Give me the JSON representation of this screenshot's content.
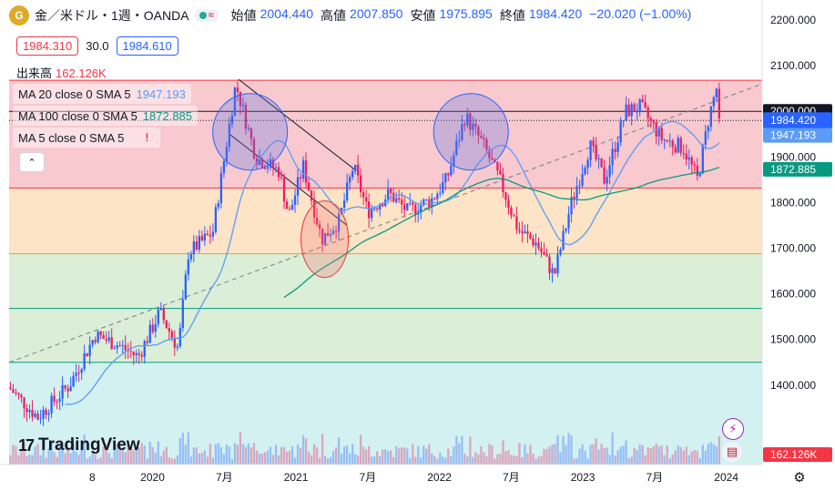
{
  "header": {
    "symbol": "金／米ドル・1週・OANDA",
    "icon_label": "G",
    "badge_wave": "≈",
    "ohlc": [
      {
        "label": "始値",
        "value": "2004.440"
      },
      {
        "label": "高値",
        "value": "2007.850"
      },
      {
        "label": "安値",
        "value": "1975.895"
      },
      {
        "label": "終値",
        "value": "1984.420"
      }
    ],
    "change": "−20.020 (−1.00%)"
  },
  "quote": {
    "bid": "1984.310",
    "spread": "30.0",
    "ask": "1984.610"
  },
  "volume": {
    "label": "出来高",
    "value": "162.126K"
  },
  "ma": [
    {
      "label": "MA 20 close 0 SMA 5",
      "value": "1947.193",
      "color": "#5b9cf6"
    },
    {
      "label": "MA 100 close 0 SMA 5",
      "value": "1872.885",
      "color": "#089981"
    },
    {
      "label": "MA 5 close 0 SMA 5",
      "value": "",
      "color": "#131722"
    }
  ],
  "ui": {
    "collapse": "⌃",
    "brand": "TradingView",
    "settings": "⚙",
    "warn": "!"
  },
  "colors": {
    "up": "#2962ff",
    "down": "#e91e63",
    "ma20": "#5b9cf6",
    "ma100": "#089981"
  },
  "chart_data": {
    "type": "candlestick",
    "interval": "1W",
    "ylim": [
      1250,
      2200
    ],
    "y_ticks": [
      1400,
      1500,
      1600,
      1700,
      1800,
      1900,
      2000,
      2100,
      2200
    ],
    "y_tick_labels": [
      "1400.000",
      "1500.000",
      "1600.000",
      "1700.000",
      "1800.000",
      "1900.000",
      "2000.000",
      "2100.000",
      "2200.000"
    ],
    "x_ticks": [
      {
        "label": "8",
        "t": 2019.58
      },
      {
        "label": "2020",
        "t": 2020.0
      },
      {
        "label": "7月",
        "t": 2020.5
      },
      {
        "label": "2021",
        "t": 2021.0
      },
      {
        "label": "7月",
        "t": 2021.5
      },
      {
        "label": "2022",
        "t": 2022.0
      },
      {
        "label": "7月",
        "t": 2022.5
      },
      {
        "label": "2023",
        "t": 2023.0
      },
      {
        "label": "7月",
        "t": 2023.5
      },
      {
        "label": "2024",
        "t": 2024.0
      }
    ],
    "fib_levels": [
      {
        "price": 2068,
        "fill": "#f8c9cf",
        "line": "#f23645"
      },
      {
        "price": 1832,
        "fill": "#fde4c7",
        "line": "#f23645"
      },
      {
        "price": 1688,
        "fill": "#dbeed7",
        "line": "#f7a600"
      },
      {
        "price": 1568,
        "fill": "#dbeed7",
        "line": "#089981"
      },
      {
        "price": 1450,
        "fill": "#d3f1f1",
        "line": "#089981"
      }
    ],
    "hlines": [
      {
        "price": 1980,
        "style": "dotted"
      },
      {
        "price": 2000,
        "style": "solid"
      }
    ],
    "anchors": [
      [
        2019.0,
        1395
      ],
      [
        2019.2,
        1330
      ],
      [
        2019.42,
        1400
      ],
      [
        2019.6,
        1510
      ],
      [
        2019.75,
        1490
      ],
      [
        2019.9,
        1462
      ],
      [
        2020.05,
        1560
      ],
      [
        2020.18,
        1480
      ],
      [
        2020.25,
        1690
      ],
      [
        2020.42,
        1735
      ],
      [
        2020.58,
        2060
      ],
      [
        2020.72,
        1900
      ],
      [
        2020.88,
        1870
      ],
      [
        2020.95,
        1770
      ],
      [
        2021.05,
        1880
      ],
      [
        2021.18,
        1720
      ],
      [
        2021.3,
        1760
      ],
      [
        2021.4,
        1880
      ],
      [
        2021.5,
        1780
      ],
      [
        2021.65,
        1820
      ],
      [
        2021.78,
        1780
      ],
      [
        2021.95,
        1808
      ],
      [
        2022.05,
        1850
      ],
      [
        2022.18,
        1990
      ],
      [
        2022.3,
        1930
      ],
      [
        2022.42,
        1850
      ],
      [
        2022.55,
        1740
      ],
      [
        2022.68,
        1710
      ],
      [
        2022.8,
        1640
      ],
      [
        2022.92,
        1800
      ],
      [
        2023.05,
        1925
      ],
      [
        2023.15,
        1850
      ],
      [
        2023.3,
        2000
      ],
      [
        2023.4,
        2010
      ],
      [
        2023.55,
        1940
      ],
      [
        2023.7,
        1920
      ],
      [
        2023.8,
        1850
      ],
      [
        2023.88,
        1990
      ],
      [
        2023.94,
        2060
      ],
      [
        2023.96,
        1984
      ]
    ],
    "overlays": [
      {
        "kind": "ellipse",
        "t": 2020.68,
        "price": 1955,
        "color": "blue"
      },
      {
        "kind": "ellipse",
        "t": 2022.22,
        "price": 1955,
        "color": "blue"
      },
      {
        "kind": "ellipse",
        "t": 2021.2,
        "price": 1720,
        "color": "red"
      },
      {
        "kind": "channel",
        "from": [
          2020.6,
          2070
        ],
        "to": [
          2021.42,
          1870
        ],
        "offset": 120
      },
      {
        "kind": "trend",
        "from": [
          2019.0,
          1450
        ],
        "to": [
          2024.25,
          2060
        ]
      }
    ]
  }
}
